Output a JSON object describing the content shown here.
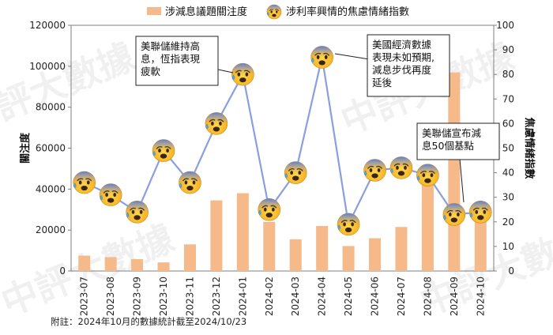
{
  "chart_data": {
    "type": "bar+line",
    "categories": [
      "2023-07",
      "2023-08",
      "2023-09",
      "2023-10",
      "2023-11",
      "2023-12",
      "2024-01",
      "2024-02",
      "2024-03",
      "2024-04",
      "2024-05",
      "2024-06",
      "2024-07",
      "2024-08",
      "2024-09",
      "2024-10"
    ],
    "series": [
      {
        "name": "涉減息議題關注度",
        "type": "bar",
        "axis": "left",
        "color": "#f5b98a",
        "values": [
          7500,
          6800,
          5800,
          4200,
          13000,
          34500,
          38000,
          24000,
          15500,
          22000,
          12200,
          16000,
          21500,
          42500,
          97000,
          30000
        ]
      },
      {
        "name": "涉利率興情的焦慮情緒指數",
        "type": "line",
        "axis": "right",
        "color": "#8a9fe0",
        "marker_icon": "anxious-face-icon",
        "values": [
          36,
          31,
          24,
          49,
          36,
          60,
          80,
          25,
          40,
          87,
          19,
          41,
          42,
          39,
          23,
          24
        ]
      }
    ],
    "ylabel_left": "關注度",
    "ylabel_right": "焦慮情緒指數",
    "ylim_left": [
      0,
      120000
    ],
    "ylim_right": [
      0,
      100
    ],
    "yticks_left": [
      "0",
      "20000",
      "40000",
      "60000",
      "80000",
      "100000",
      "120000"
    ],
    "yticks_right": [
      "0",
      "10",
      "20",
      "30",
      "40",
      "50",
      "60",
      "70",
      "80",
      "90",
      "100"
    ],
    "grid": false,
    "legend_position": "top",
    "annotations": [
      {
        "text_lines": [
          "美聯儲維持高",
          "息，恆指表現",
          "疲軟"
        ],
        "category": "2024-01"
      },
      {
        "text_lines": [
          "美國經濟數據",
          "表現未如預期,",
          "減息步伐再度",
          "延後"
        ],
        "category": "2024-04"
      },
      {
        "text_lines": [
          "美聯儲宣布減",
          "息50個基點"
        ],
        "category": "2024-09"
      }
    ],
    "footnote": "附註：2024年10月的數據統計截至2024/10/23",
    "watermark": "中評大數據"
  }
}
